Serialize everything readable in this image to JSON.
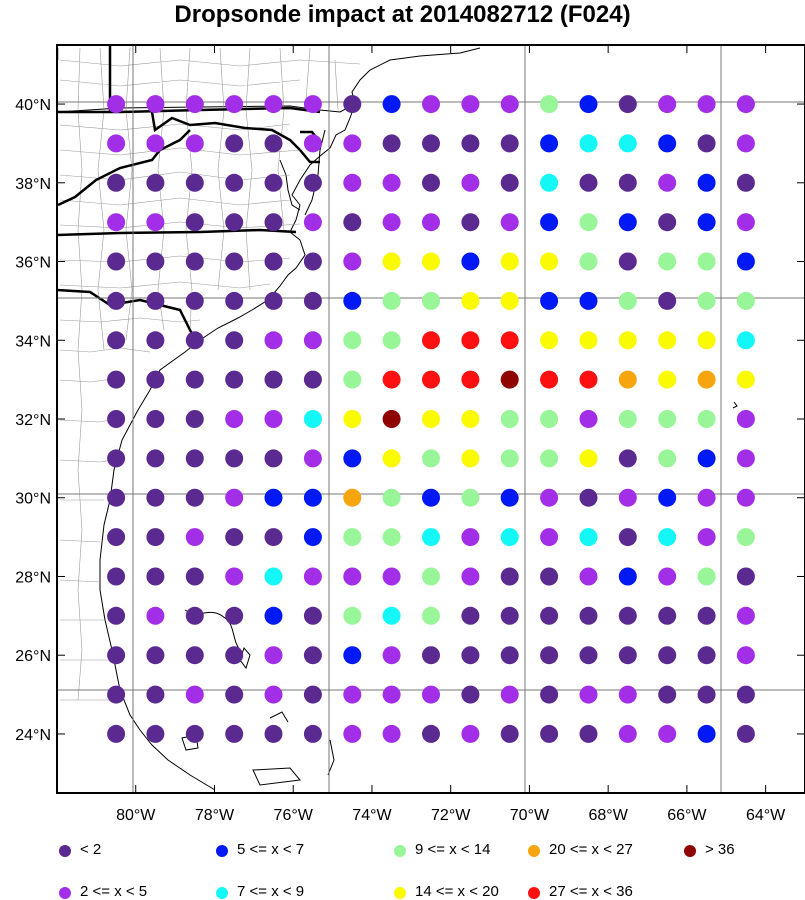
{
  "title": "Dropsonde impact at 2014082712 (F024)",
  "lat_labels": [
    "40°N",
    "38°N",
    "36°N",
    "34°N",
    "32°N",
    "30°N",
    "28°N",
    "26°N",
    "24°N"
  ],
  "lon_labels": [
    "80°W",
    "78°W",
    "76°W",
    "74°W",
    "72°W",
    "70°W",
    "68°W",
    "66°W",
    "64°W"
  ],
  "legend": [
    {
      "key": "c0",
      "label": "<  2",
      "color": "#5b2a91"
    },
    {
      "key": "c1",
      "label": "2 <= x <  5",
      "color": "#a22ee8"
    },
    {
      "key": "c2",
      "label": "5 <= x <  7",
      "color": "#0019f5"
    },
    {
      "key": "c3",
      "label": "7 <= x <  9",
      "color": "#14f7f7"
    },
    {
      "key": "c4",
      "label": "9 <= x < 14",
      "color": "#98f598"
    },
    {
      "key": "c5",
      "label": "14 <= x < 20",
      "color": "#fafa00"
    },
    {
      "key": "c6",
      "label": "20 <= x < 27",
      "color": "#f7a50f"
    },
    {
      "key": "c7",
      "label": "27 <= x < 36",
      "color": "#ff1010"
    },
    {
      "key": "c8",
      "label": "> 36",
      "color": "#8f0303"
    }
  ],
  "chart_data": {
    "type": "scatter",
    "title": "Dropsonde impact at 2014082712 (F024)",
    "grid_lon": [
      -80.5,
      -79.5,
      -78.5,
      -77.5,
      -76.5,
      -75.5,
      -74.5,
      -73.5,
      -72.5,
      -71.5,
      -70.5,
      -69.5,
      -68.5,
      -67.5,
      -66.5,
      -65.5,
      -64.5
    ],
    "grid_lat": [
      40,
      39,
      38,
      37,
      36,
      35,
      34,
      33,
      32,
      31,
      30,
      29,
      28,
      27,
      26,
      25,
      24
    ],
    "lon_range": [
      -82,
      -63
    ],
    "lat_range": [
      22.5,
      41.5
    ],
    "rows": [
      "11111102111420111",
      "11100110000233201",
      "00000011010300120",
      "11000101101242021",
      "00000015525540442",
      "00000024455224044",
      "00001144777555553",
      "00000047778776565",
      "00011358554414441",
      "00000125454450421",
      "00012264242101211",
      "00100244313130314",
      "00013111410012140",
      "01002043400000001",
      "00001021000000001",
      "00101011101011000",
      "00000011010001120"
    ]
  }
}
